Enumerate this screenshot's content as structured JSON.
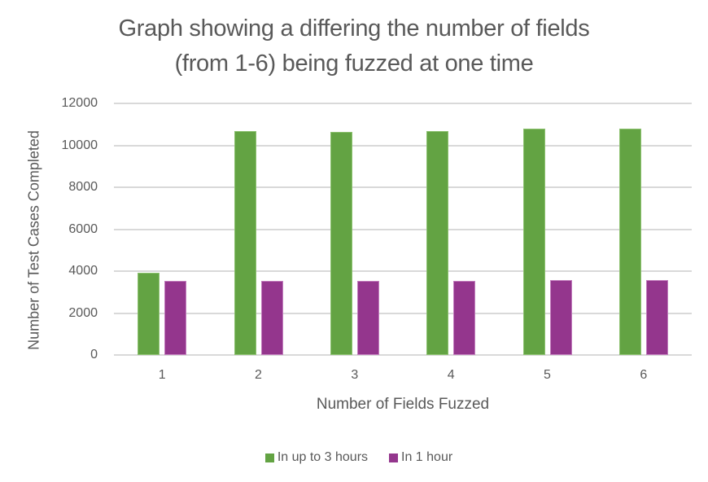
{
  "chart_data": {
    "type": "bar",
    "title": "Graph showing a differing the number of fields (from 1-6) being fuzzed at one time",
    "title_lines": [
      "Graph showing a differing the number of fields",
      "(from 1-6) being fuzzed at one time"
    ],
    "xlabel": "Number of Fields Fuzzed",
    "ylabel": "Number of Test Cases Completed",
    "categories": [
      "1",
      "2",
      "3",
      "4",
      "5",
      "6"
    ],
    "series": [
      {
        "name": "In up to 3 hours",
        "color": "#63A343",
        "values": [
          3920,
          10680,
          10640,
          10680,
          10800,
          10800
        ]
      },
      {
        "name": "In 1 hour",
        "color": "#94368D",
        "values": [
          3530,
          3530,
          3530,
          3530,
          3570,
          3570
        ]
      }
    ],
    "ylim": [
      0,
      12000
    ],
    "yticks": [
      "12000",
      "10000",
      "8000",
      "6000",
      "4000",
      "2000",
      "0"
    ],
    "grid": true,
    "legend_position": "bottom"
  }
}
